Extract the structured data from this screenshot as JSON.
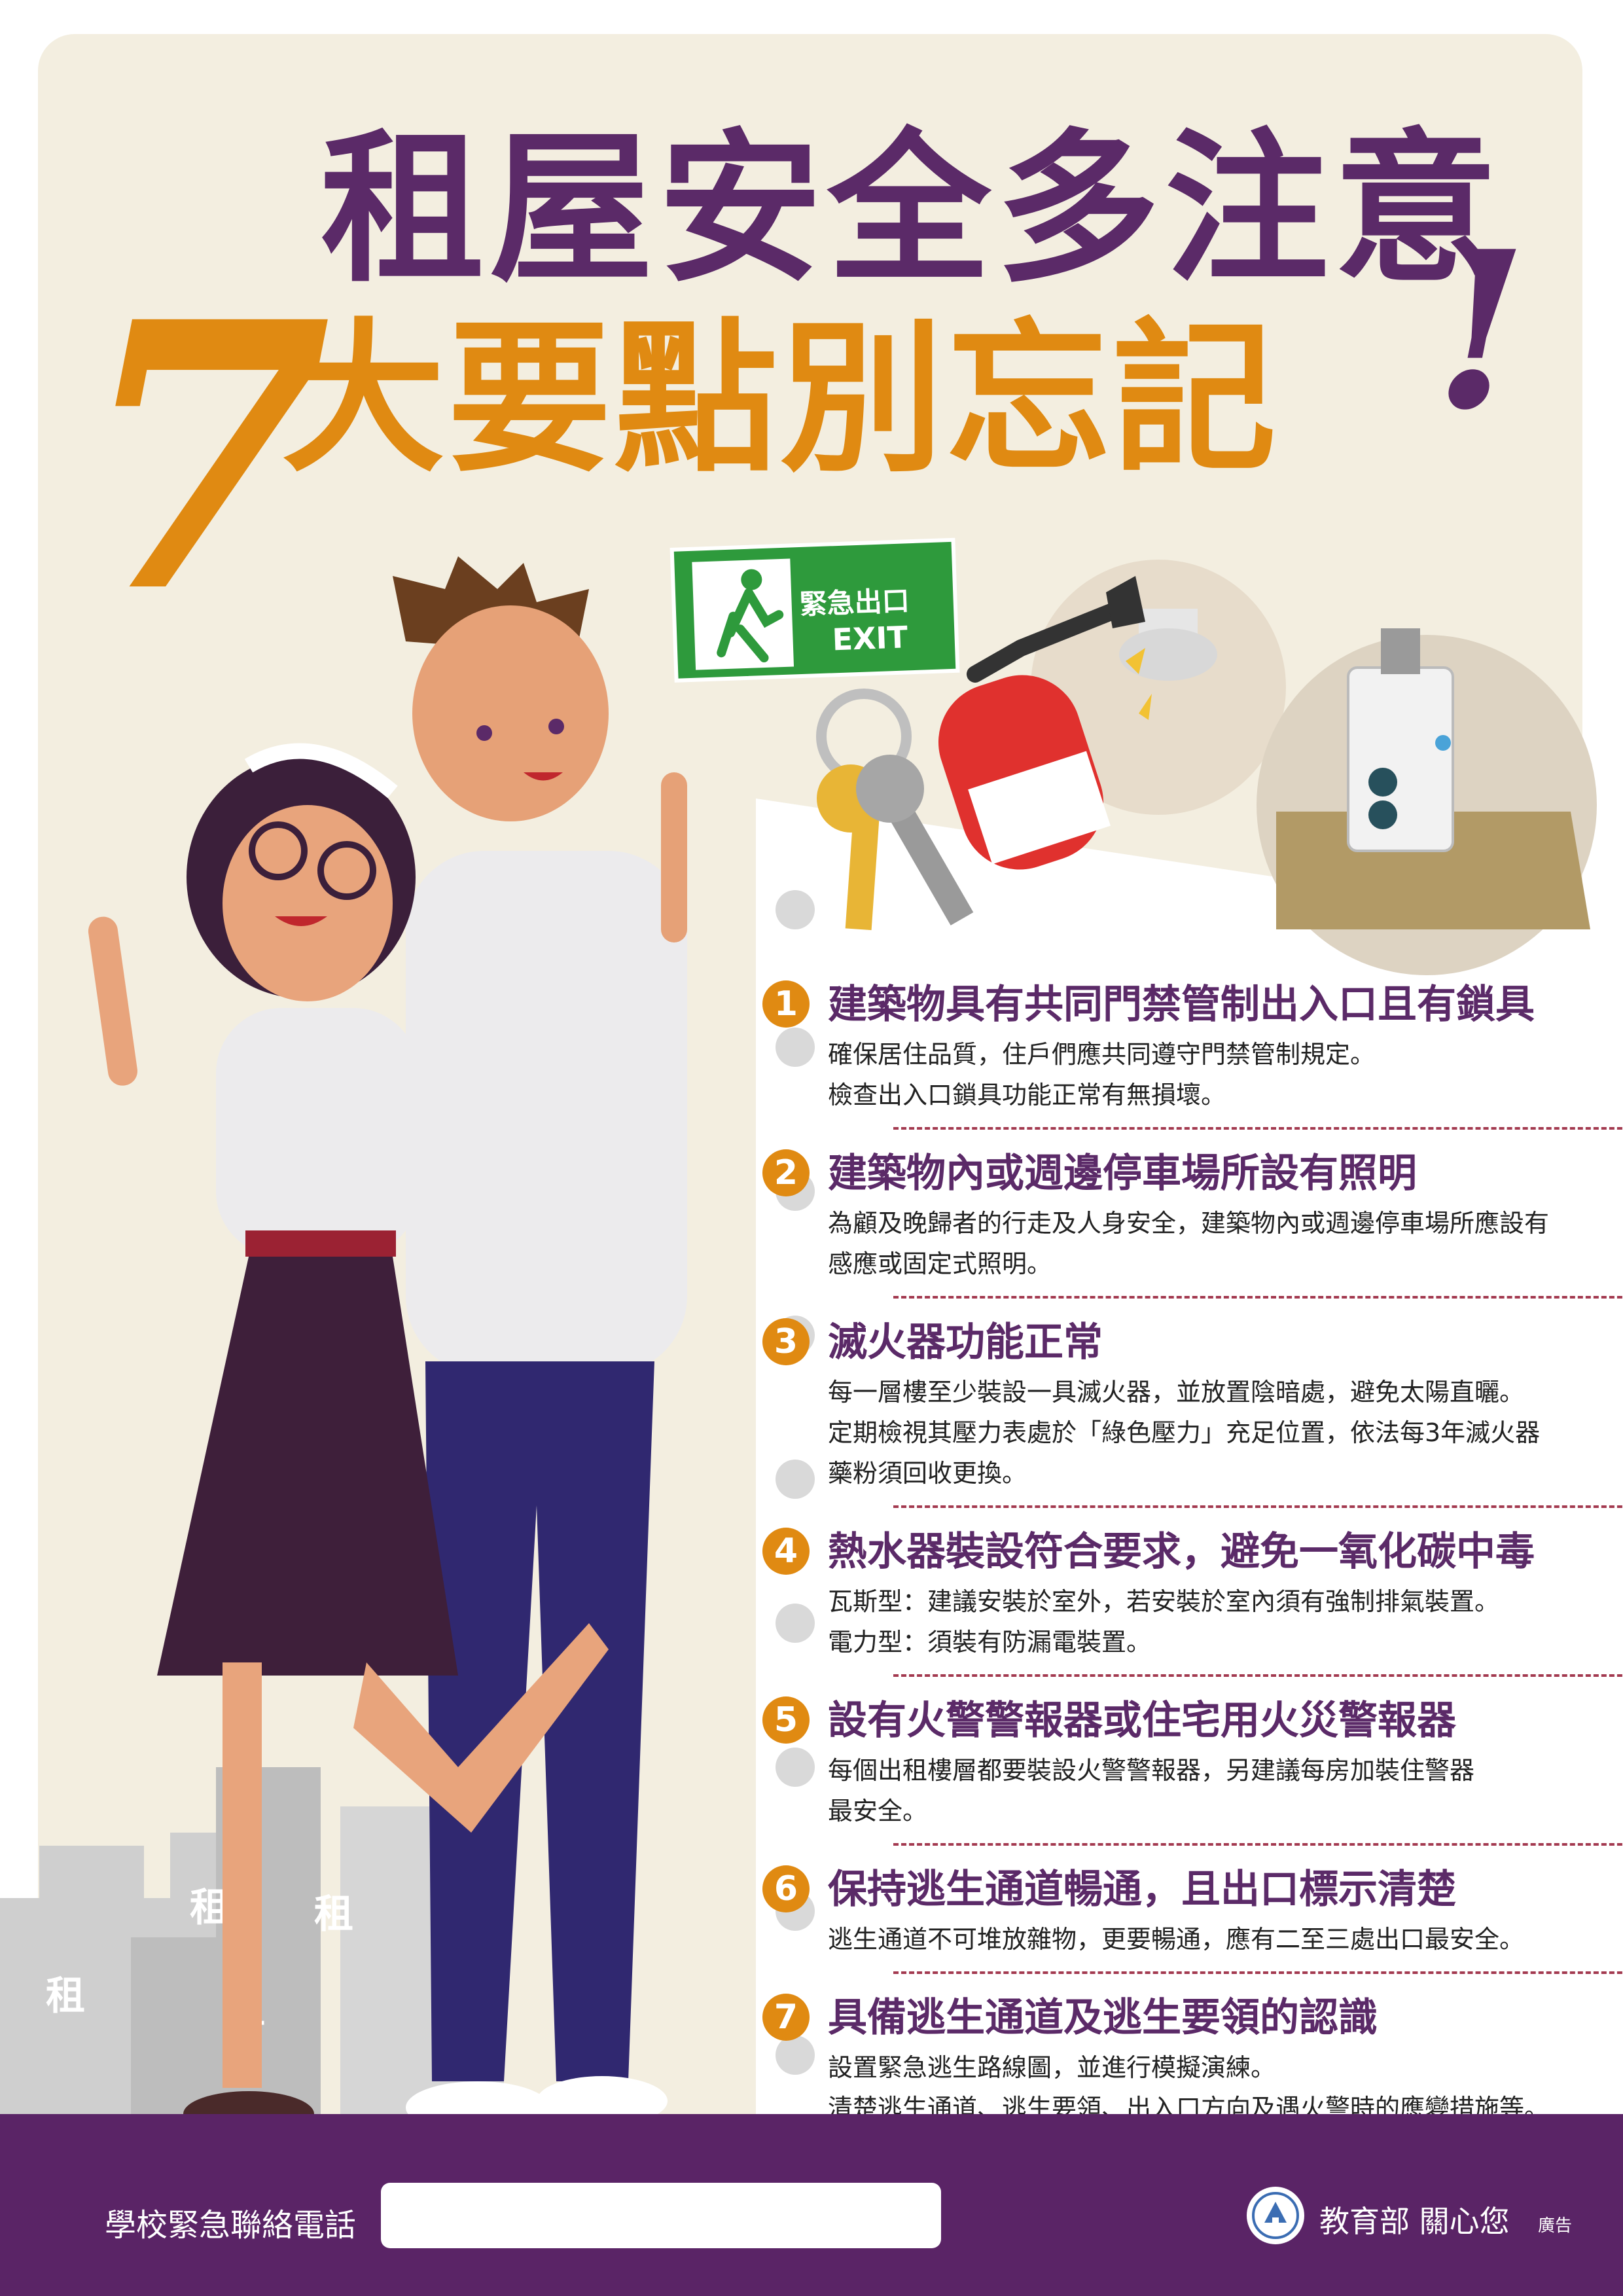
{
  "header": {
    "title_line1": "租屋安全多注意",
    "title_number": "7",
    "title_line2": "大要點別忘記",
    "title_mark": "!"
  },
  "exit_sign": {
    "label_zh": "緊急出口",
    "label_en": "EXIT"
  },
  "building_chars": [
    "租",
    "租",
    "租",
    "租"
  ],
  "items": [
    {
      "number": "1",
      "title": "建築物具有共同門禁管制出入口且有鎖具",
      "lines": [
        "確保居住品質，住戶們應共同遵守門禁管制規定。",
        "檢查出入口鎖具功能正常有無損壞。"
      ]
    },
    {
      "number": "2",
      "title": "建築物內或週邊停車場所設有照明",
      "lines": [
        "為顧及晚歸者的行走及人身安全，建築物內或週邊停車場所應設有",
        "感應或固定式照明。"
      ]
    },
    {
      "number": "3",
      "title": "滅火器功能正常",
      "lines": [
        "每一層樓至少裝設一具滅火器，並放置陰暗處，避免太陽直曬。",
        "定期檢視其壓力表處於「綠色壓力」充足位置，依法每3年滅火器",
        "藥粉須回收更換。"
      ]
    },
    {
      "number": "4",
      "title": "熱水器裝設符合要求，避免一氧化碳中毒",
      "lines": [
        "瓦斯型：建議安裝於室外，若安裝於室內須有強制排氣裝置。",
        "電力型：須裝有防漏電裝置。"
      ]
    },
    {
      "number": "5",
      "title": "設有火警警報器或住宅用火災警報器",
      "lines": [
        "每個出租樓層都要裝設火警警報器，另建議每房加裝住警器",
        "最安全。"
      ]
    },
    {
      "number": "6",
      "title": "保持逃生通道暢通，且出口標示清楚",
      "lines": [
        "逃生通道不可堆放雜物，更要暢通，應有二至三處出口最安全。"
      ]
    },
    {
      "number": "7",
      "title": "具備逃生通道及逃生要領的認識",
      "lines": [
        "設置緊急逃生路線圖，並進行模擬演練。",
        "清楚逃生通道、逃生要領、出入口方向及遇火警時的應變措施等。"
      ]
    }
  ],
  "footer": {
    "contact_label": "學校緊急聯絡電話",
    "contact_value": "",
    "ministry": "教育部 關心您",
    "ad_tag": "廣告"
  },
  "colors": {
    "purple": "#5b2a68",
    "orange": "#e08a12",
    "cream": "#f3eee0",
    "footer_purple": "#5a2466",
    "divider_red": "#a33a50"
  },
  "icons": [
    "exit-sign-icon",
    "keys-icon",
    "fire-extinguisher-icon",
    "smoke-detector-icon",
    "water-heater-icon",
    "ministry-seal-icon"
  ]
}
